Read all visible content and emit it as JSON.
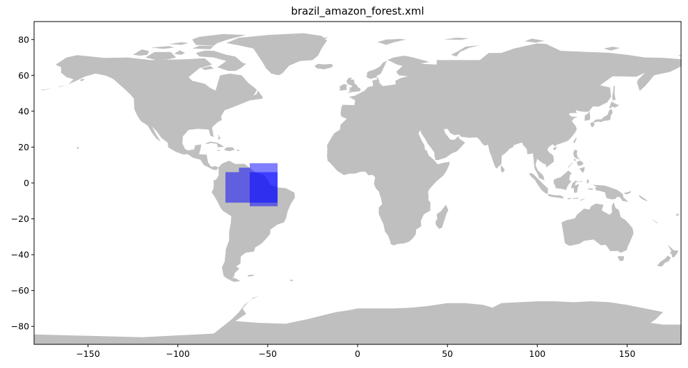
{
  "title": "brazil_amazon_forest.xml",
  "chart_data": {
    "type": "map",
    "title": "brazil_amazon_forest.xml",
    "xlim": [
      -180,
      180
    ],
    "ylim": [
      -90,
      90
    ],
    "x_ticks": [
      -150,
      -100,
      -50,
      0,
      50,
      100,
      150
    ],
    "y_ticks": [
      -80,
      -60,
      -40,
      -20,
      0,
      20,
      40,
      60,
      80
    ],
    "grid": false,
    "land_color": "#bfbfbf",
    "region_color": "#0000ff",
    "region_opacity": 0.5,
    "regions": [
      {
        "bounds": {
          "lon_min": -73.5,
          "lon_max": -44.5,
          "lat_min": -11,
          "lat_max": 6
        }
      },
      {
        "bounds": {
          "lon_min": -60,
          "lon_max": -44.5,
          "lat_min": -13,
          "lat_max": 11
        }
      },
      {
        "bounds": {
          "lon_min": -66,
          "lon_max": -60,
          "lat_min": 6,
          "lat_max": 8.5
        }
      }
    ]
  }
}
